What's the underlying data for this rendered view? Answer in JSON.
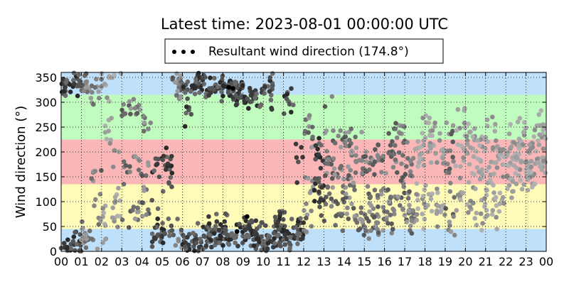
{
  "chart_data": {
    "type": "scatter",
    "title": "Latest time: 2023-08-01 00:00:00 UTC",
    "ylabel": "Wind direction (°)",
    "xlabel": "",
    "xlim": [
      0,
      24
    ],
    "ylim": [
      0,
      360
    ],
    "x_tick_labels": [
      "00",
      "01",
      "02",
      "03",
      "04",
      "05",
      "06",
      "07",
      "08",
      "09",
      "10",
      "11",
      "12",
      "13",
      "14",
      "15",
      "16",
      "17",
      "18",
      "19",
      "20",
      "21",
      "22",
      "23",
      "00"
    ],
    "y_ticks": [
      0,
      50,
      100,
      150,
      200,
      250,
      300,
      350
    ],
    "grid": true,
    "legend": {
      "placement": "top-center",
      "entries": [
        {
          "label": "Resultant wind direction (174.8°)",
          "marker": "dots",
          "color": "#000000"
        }
      ]
    },
    "direction_bands": [
      {
        "from": 0,
        "to": 45,
        "color": "#bfe0fb"
      },
      {
        "from": 45,
        "to": 135,
        "color": "#fefab8"
      },
      {
        "from": 135,
        "to": 225,
        "color": "#fbb7b7"
      },
      {
        "from": 225,
        "to": 315,
        "color": "#bffcbd"
      },
      {
        "from": 315,
        "to": 360,
        "color": "#bfe0fb"
      }
    ],
    "hourly_clusters": [
      {
        "hour": 0.0,
        "dirs": [
          [
            10,
            25
          ],
          [
            335,
            20
          ]
        ],
        "n": 34,
        "shade": "dark"
      },
      {
        "hour": 0.5,
        "dirs": [
          [
            20,
            25
          ],
          [
            340,
            18
          ]
        ],
        "n": 28,
        "shade": "dark"
      },
      {
        "hour": 1.0,
        "dirs": [
          [
            30,
            25
          ],
          [
            330,
            20
          ]
        ],
        "n": 30,
        "shade": "mid"
      },
      {
        "hour": 1.5,
        "dirs": [
          [
            45,
            35
          ],
          [
            320,
            25
          ],
          [
            150,
            30
          ]
        ],
        "n": 26,
        "shade": "mid"
      },
      {
        "hour": 2.0,
        "dirs": [
          [
            60,
            40
          ],
          [
            330,
            25
          ],
          [
            250,
            40
          ]
        ],
        "n": 24,
        "shade": "light"
      },
      {
        "hour": 2.5,
        "dirs": [
          [
            90,
            40
          ],
          [
            340,
            20
          ],
          [
            200,
            40
          ]
        ],
        "n": 20,
        "shade": "light"
      },
      {
        "hour": 3.0,
        "dirs": [
          [
            60,
            35
          ],
          [
            170,
            20
          ],
          [
            280,
            20
          ]
        ],
        "n": 22,
        "shade": "mid"
      },
      {
        "hour": 3.5,
        "dirs": [
          [
            80,
            30
          ],
          [
            180,
            30
          ],
          [
            290,
            20
          ]
        ],
        "n": 22,
        "shade": "mid"
      },
      {
        "hour": 4.0,
        "dirs": [
          [
            100,
            40
          ],
          [
            170,
            25
          ],
          [
            260,
            20
          ]
        ],
        "n": 22,
        "shade": "mid"
      },
      {
        "hour": 4.5,
        "dirs": [
          [
            170,
            25
          ],
          [
            100,
            40
          ],
          [
            40,
            20
          ]
        ],
        "n": 26,
        "shade": "dark"
      },
      {
        "hour": 5.0,
        "dirs": [
          [
            185,
            20
          ],
          [
            40,
            25
          ],
          [
            150,
            30
          ]
        ],
        "n": 30,
        "shade": "dark"
      },
      {
        "hour": 5.5,
        "dirs": [
          [
            30,
            25
          ],
          [
            330,
            25
          ]
        ],
        "n": 26,
        "shade": "mid"
      },
      {
        "hour": 6.0,
        "dirs": [
          [
            15,
            20
          ],
          [
            335,
            20
          ],
          [
            280,
            30
          ]
        ],
        "n": 30,
        "shade": "dark"
      },
      {
        "hour": 6.5,
        "dirs": [
          [
            25,
            25
          ],
          [
            340,
            18
          ]
        ],
        "n": 34,
        "shade": "dark"
      },
      {
        "hour": 7.0,
        "dirs": [
          [
            30,
            25
          ],
          [
            335,
            20
          ]
        ],
        "n": 40,
        "shade": "dark"
      },
      {
        "hour": 7.5,
        "dirs": [
          [
            40,
            25
          ],
          [
            330,
            20
          ]
        ],
        "n": 40,
        "shade": "dark"
      },
      {
        "hour": 8.0,
        "dirs": [
          [
            35,
            25
          ],
          [
            330,
            18
          ]
        ],
        "n": 42,
        "shade": "dark"
      },
      {
        "hour": 8.5,
        "dirs": [
          [
            40,
            30
          ],
          [
            320,
            20
          ]
        ],
        "n": 40,
        "shade": "dark"
      },
      {
        "hour": 9.0,
        "dirs": [
          [
            40,
            30
          ],
          [
            310,
            20
          ]
        ],
        "n": 40,
        "shade": "dark"
      },
      {
        "hour": 9.5,
        "dirs": [
          [
            30,
            25
          ],
          [
            300,
            20
          ]
        ],
        "n": 38,
        "shade": "dark"
      },
      {
        "hour": 10.0,
        "dirs": [
          [
            25,
            25
          ],
          [
            320,
            25
          ]
        ],
        "n": 34,
        "shade": "dark"
      },
      {
        "hour": 10.5,
        "dirs": [
          [
            30,
            25
          ],
          [
            60,
            25
          ]
        ],
        "n": 34,
        "shade": "dark"
      },
      {
        "hour": 11.0,
        "dirs": [
          [
            40,
            25
          ],
          [
            20,
            20
          ],
          [
            300,
            30
          ]
        ],
        "n": 32,
        "shade": "dark"
      },
      {
        "hour": 11.5,
        "dirs": [
          [
            50,
            25
          ],
          [
            30,
            20
          ],
          [
            180,
            40
          ]
        ],
        "n": 30,
        "shade": "dark"
      },
      {
        "hour": 12.0,
        "dirs": [
          [
            60,
            30
          ],
          [
            140,
            30
          ],
          [
            250,
            40
          ]
        ],
        "n": 28,
        "shade": "mid"
      },
      {
        "hour": 12.5,
        "dirs": [
          [
            100,
            30
          ],
          [
            140,
            25
          ],
          [
            200,
            30
          ]
        ],
        "n": 32,
        "shade": "dark"
      },
      {
        "hour": 13.0,
        "dirs": [
          [
            110,
            40
          ],
          [
            170,
            30
          ],
          [
            270,
            40
          ]
        ],
        "n": 30,
        "shade": "mid"
      },
      {
        "hour": 13.5,
        "dirs": [
          [
            90,
            40
          ],
          [
            160,
            30
          ],
          [
            240,
            35
          ]
        ],
        "n": 28,
        "shade": "mid"
      },
      {
        "hour": 14.0,
        "dirs": [
          [
            90,
            40
          ],
          [
            150,
            30
          ],
          [
            220,
            30
          ]
        ],
        "n": 30,
        "shade": "mid"
      },
      {
        "hour": 14.5,
        "dirs": [
          [
            100,
            40
          ],
          [
            180,
            35
          ],
          [
            60,
            30
          ]
        ],
        "n": 30,
        "shade": "mid"
      },
      {
        "hour": 15.0,
        "dirs": [
          [
            100,
            35
          ],
          [
            170,
            35
          ],
          [
            50,
            25
          ]
        ],
        "n": 32,
        "shade": "mid"
      },
      {
        "hour": 15.5,
        "dirs": [
          [
            120,
            35
          ],
          [
            190,
            35
          ],
          [
            60,
            30
          ]
        ],
        "n": 32,
        "shade": "mid"
      },
      {
        "hour": 16.0,
        "dirs": [
          [
            110,
            40
          ],
          [
            210,
            35
          ],
          [
            60,
            30
          ]
        ],
        "n": 32,
        "shade": "mid"
      },
      {
        "hour": 16.5,
        "dirs": [
          [
            100,
            40
          ],
          [
            180,
            40
          ],
          [
            250,
            40
          ]
        ],
        "n": 32,
        "shade": "mid"
      },
      {
        "hour": 17.0,
        "dirs": [
          [
            90,
            40
          ],
          [
            170,
            40
          ],
          [
            60,
            30
          ]
        ],
        "n": 32,
        "shade": "mid"
      },
      {
        "hour": 17.5,
        "dirs": [
          [
            100,
            40
          ],
          [
            200,
            40
          ]
        ],
        "n": 30,
        "shade": "light"
      },
      {
        "hour": 18.0,
        "dirs": [
          [
            100,
            40
          ],
          [
            190,
            40
          ],
          [
            240,
            30
          ]
        ],
        "n": 28,
        "shade": "light"
      },
      {
        "hour": 18.5,
        "dirs": [
          [
            150,
            40
          ],
          [
            200,
            30
          ],
          [
            80,
            30
          ]
        ],
        "n": 26,
        "shade": "light"
      },
      {
        "hour": 19.0,
        "dirs": [
          [
            90,
            40
          ],
          [
            170,
            40
          ],
          [
            240,
            35
          ]
        ],
        "n": 26,
        "shade": "mid"
      },
      {
        "hour": 19.5,
        "dirs": [
          [
            100,
            40
          ],
          [
            200,
            40
          ],
          [
            260,
            35
          ]
        ],
        "n": 26,
        "shade": "light"
      },
      {
        "hour": 20.0,
        "dirs": [
          [
            180,
            40
          ],
          [
            230,
            40
          ],
          [
            100,
            30
          ]
        ],
        "n": 30,
        "shade": "light"
      },
      {
        "hour": 20.5,
        "dirs": [
          [
            180,
            40
          ],
          [
            220,
            40
          ],
          [
            80,
            30
          ]
        ],
        "n": 30,
        "shade": "light"
      },
      {
        "hour": 21.0,
        "dirs": [
          [
            180,
            40
          ],
          [
            230,
            40
          ],
          [
            100,
            35
          ]
        ],
        "n": 30,
        "shade": "light"
      },
      {
        "hour": 21.5,
        "dirs": [
          [
            190,
            40
          ],
          [
            170,
            40
          ],
          [
            90,
            30
          ]
        ],
        "n": 28,
        "shade": "light"
      },
      {
        "hour": 22.0,
        "dirs": [
          [
            200,
            40
          ],
          [
            160,
            40
          ]
        ],
        "n": 30,
        "shade": "light"
      },
      {
        "hour": 22.5,
        "dirs": [
          [
            200,
            40
          ],
          [
            170,
            40
          ],
          [
            230,
            30
          ]
        ],
        "n": 32,
        "shade": "light"
      },
      {
        "hour": 23.0,
        "dirs": [
          [
            190,
            40
          ],
          [
            210,
            35
          ],
          [
            150,
            35
          ]
        ],
        "n": 32,
        "shade": "light"
      },
      {
        "hour": 23.5,
        "dirs": [
          [
            200,
            40
          ],
          [
            180,
            40
          ],
          [
            250,
            30
          ]
        ],
        "n": 30,
        "shade": "light"
      }
    ]
  }
}
